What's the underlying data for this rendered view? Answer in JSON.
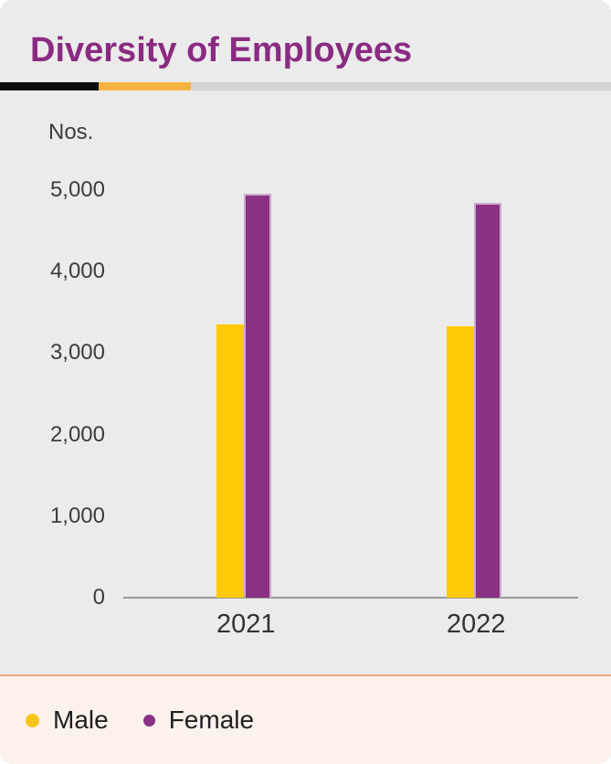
{
  "card": {
    "title": "Diversity of Employees",
    "title_color": "#8a2b82",
    "divider_colors": {
      "black": "#0a0a0a",
      "amber": "#f9b342",
      "gray": "#d4d4d4"
    }
  },
  "chart_data": {
    "type": "bar",
    "title": "Diversity of Employees",
    "unit_label": "Nos.",
    "xlabel": "",
    "ylabel": "Nos.",
    "categories": [
      "2021",
      "2022"
    ],
    "series": [
      {
        "name": "Male",
        "color": "#ffc907",
        "values": [
          3350,
          3330
        ]
      },
      {
        "name": "Female",
        "color": "#8a3184",
        "values": [
          4955,
          4845
        ]
      }
    ],
    "ylim": [
      0,
      5000
    ],
    "yticks": [
      0,
      1000,
      2000,
      3000,
      4000,
      5000
    ],
    "ytick_labels": [
      "0",
      "1,000",
      "2,000",
      "3,000",
      "4,000",
      "5,000"
    ],
    "grid": false,
    "legend_position": "bottom"
  },
  "legend": {
    "items": [
      {
        "label": "Male",
        "color": "#f9c51d"
      },
      {
        "label": "Female",
        "color": "#8a3184"
      }
    ]
  }
}
